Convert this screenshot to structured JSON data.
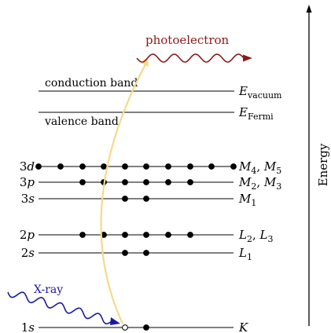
{
  "labels": {
    "photoelectron": "photoelectron",
    "conduction_band": "conduction band",
    "valence_band": "valence band",
    "x_ray": "X-ray",
    "energy_axis": "Energy"
  },
  "reference_levels": {
    "vacuum": {
      "symbol": "E",
      "subscript": "vacuum"
    },
    "fermi": {
      "symbol": "E",
      "subscript": "Fermi"
    }
  },
  "levels": [
    {
      "orbital": "3d",
      "shell": "M",
      "sub1": "4",
      "sub2": "5",
      "pair": true,
      "electrons": 10
    },
    {
      "orbital": "3p",
      "shell": "M",
      "sub1": "2",
      "sub2": "3",
      "pair": true,
      "electrons": 6
    },
    {
      "orbital": "3s",
      "shell": "M",
      "sub1": "1",
      "sub2": "",
      "pair": false,
      "electrons": 2
    },
    {
      "orbital": "2p",
      "shell": "L",
      "sub1": "2",
      "sub2": "3",
      "pair": true,
      "electrons": 6
    },
    {
      "orbital": "2s",
      "shell": "L",
      "sub1": "1",
      "sub2": "",
      "pair": false,
      "electrons": 2
    },
    {
      "orbital": "1s",
      "shell": "K",
      "sub1": "",
      "sub2": "",
      "pair": false,
      "electrons": 2,
      "vacancy": 1
    }
  ],
  "colors": {
    "lines": "#000000",
    "photoelectron": "#8b1a1a",
    "x_ray": "#1a1a9e",
    "transition_arrow": "#f5d98a"
  }
}
